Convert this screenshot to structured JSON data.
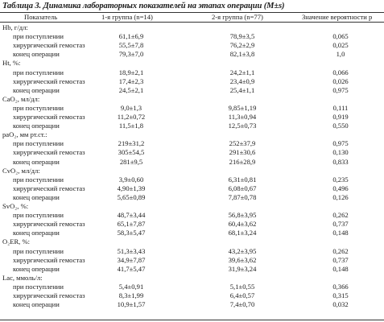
{
  "caption": {
    "label": "Таблица 3.",
    "text": "Динамика лабораторных показателей на этапах операции (M±s)"
  },
  "headers": {
    "indicator": "Показатель",
    "group1": "1-я группа (n=14)",
    "group2": "2-я группа (n=77)",
    "p": "Значение вероятности p"
  },
  "sections": [
    {
      "title": "Hb, г/дл:",
      "rows": [
        {
          "stage": "при поступлении",
          "g1": "61,1±6,9",
          "g2": "78,9±3,5",
          "p": "0,065"
        },
        {
          "stage": "хирургический гемостаз",
          "g1": "55,5±7,8",
          "g2": "76,2±2,9",
          "p": "0,025"
        },
        {
          "stage": "конец операции",
          "g1": "79,3±7,0",
          "g2": "82,1±3,8",
          "p": "1,0"
        }
      ]
    },
    {
      "title": "Ht, %:",
      "rows": [
        {
          "stage": "при поступлении",
          "g1": "18,9±2,1",
          "g2": "24,2±1,1",
          "p": "0,066"
        },
        {
          "stage": "хирургический гемостаз",
          "g1": "17,4±2,3",
          "g2": "23,4±0,9",
          "p": "0,026"
        },
        {
          "stage": "конец операции",
          "g1": "24,5±2,1",
          "g2": "25,4±1,1",
          "p": "0,975"
        }
      ]
    },
    {
      "title": "CaO₂, мл/дл:",
      "rows": [
        {
          "stage": "при поступлении",
          "g1": "9,0±1,3",
          "g2": "9,85±1,19",
          "p": "0,111"
        },
        {
          "stage": "хирургический гемостаз",
          "g1": "11,2±0,72",
          "g2": "11,3±0,94",
          "p": "0,919"
        },
        {
          "stage": "конец операции",
          "g1": "11,5±1,8",
          "g2": "12,5±0,73",
          "p": "0,550"
        }
      ]
    },
    {
      "title": "paO₂, мм рт.ст.:",
      "rows": [
        {
          "stage": "при поступлении",
          "g1": "219±31,2",
          "g2": "252±37,9",
          "p": "0,975"
        },
        {
          "stage": "хирургический гемостаз",
          "g1": "305±54,5",
          "g2": "291±30,6",
          "p": "0,130"
        },
        {
          "stage": "конец операции",
          "g1": "281±9,5",
          "g2": "216±28,9",
          "p": "0,833"
        }
      ]
    },
    {
      "title": "CvO₂, мл/дл:",
      "rows": [
        {
          "stage": "при поступлении",
          "g1": "3,9±0,60",
          "g2": "6,31±0,81",
          "p": "0,235"
        },
        {
          "stage": "хирургический гемостаз",
          "g1": "4,90±1,39",
          "g2": "6,08±0,67",
          "p": "0,496"
        },
        {
          "stage": "конец операции",
          "g1": "5,65±0,89",
          "g2": "7,87±0,78",
          "p": "0,126"
        }
      ]
    },
    {
      "title": "SvO₂, %:",
      "rows": [
        {
          "stage": "при поступлении",
          "g1": "48,7±3,44",
          "g2": "56,8±3,95",
          "p": "0,262"
        },
        {
          "stage": "хирургический гемостаз",
          "g1": "65,1±7,87",
          "g2": "60,4±3,62",
          "p": "0,737"
        },
        {
          "stage": "конец операции",
          "g1": "58,3±5,47",
          "g2": "68,1±3,24",
          "p": "0,148"
        }
      ]
    },
    {
      "title": "O₂ER, %:",
      "rows": [
        {
          "stage": "при поступлении",
          "g1": "51,3±3,43",
          "g2": "43,2±3,95",
          "p": "0,262"
        },
        {
          "stage": "хирургический гемостаз",
          "g1": "34,9±7,87",
          "g2": "39,6±3,62",
          "p": "0,737"
        },
        {
          "stage": "конец операции",
          "g1": "41,7±5,47",
          "g2": "31,9±3,24",
          "p": "0,148"
        }
      ]
    },
    {
      "title": "Lac, ммоль/л:",
      "rows": [
        {
          "stage": "при поступлении",
          "g1": "5,4±0,91",
          "g2": "5,1±0,55",
          "p": "0,366"
        },
        {
          "stage": "хирургический гемостаз",
          "g1": "8,3±1,99",
          "g2": "6,4±0,57",
          "p": "0,315"
        },
        {
          "stage": "конец операции",
          "g1": "10,9±1,57",
          "g2": "7,4±0,70",
          "p": "0,032"
        }
      ]
    }
  ]
}
